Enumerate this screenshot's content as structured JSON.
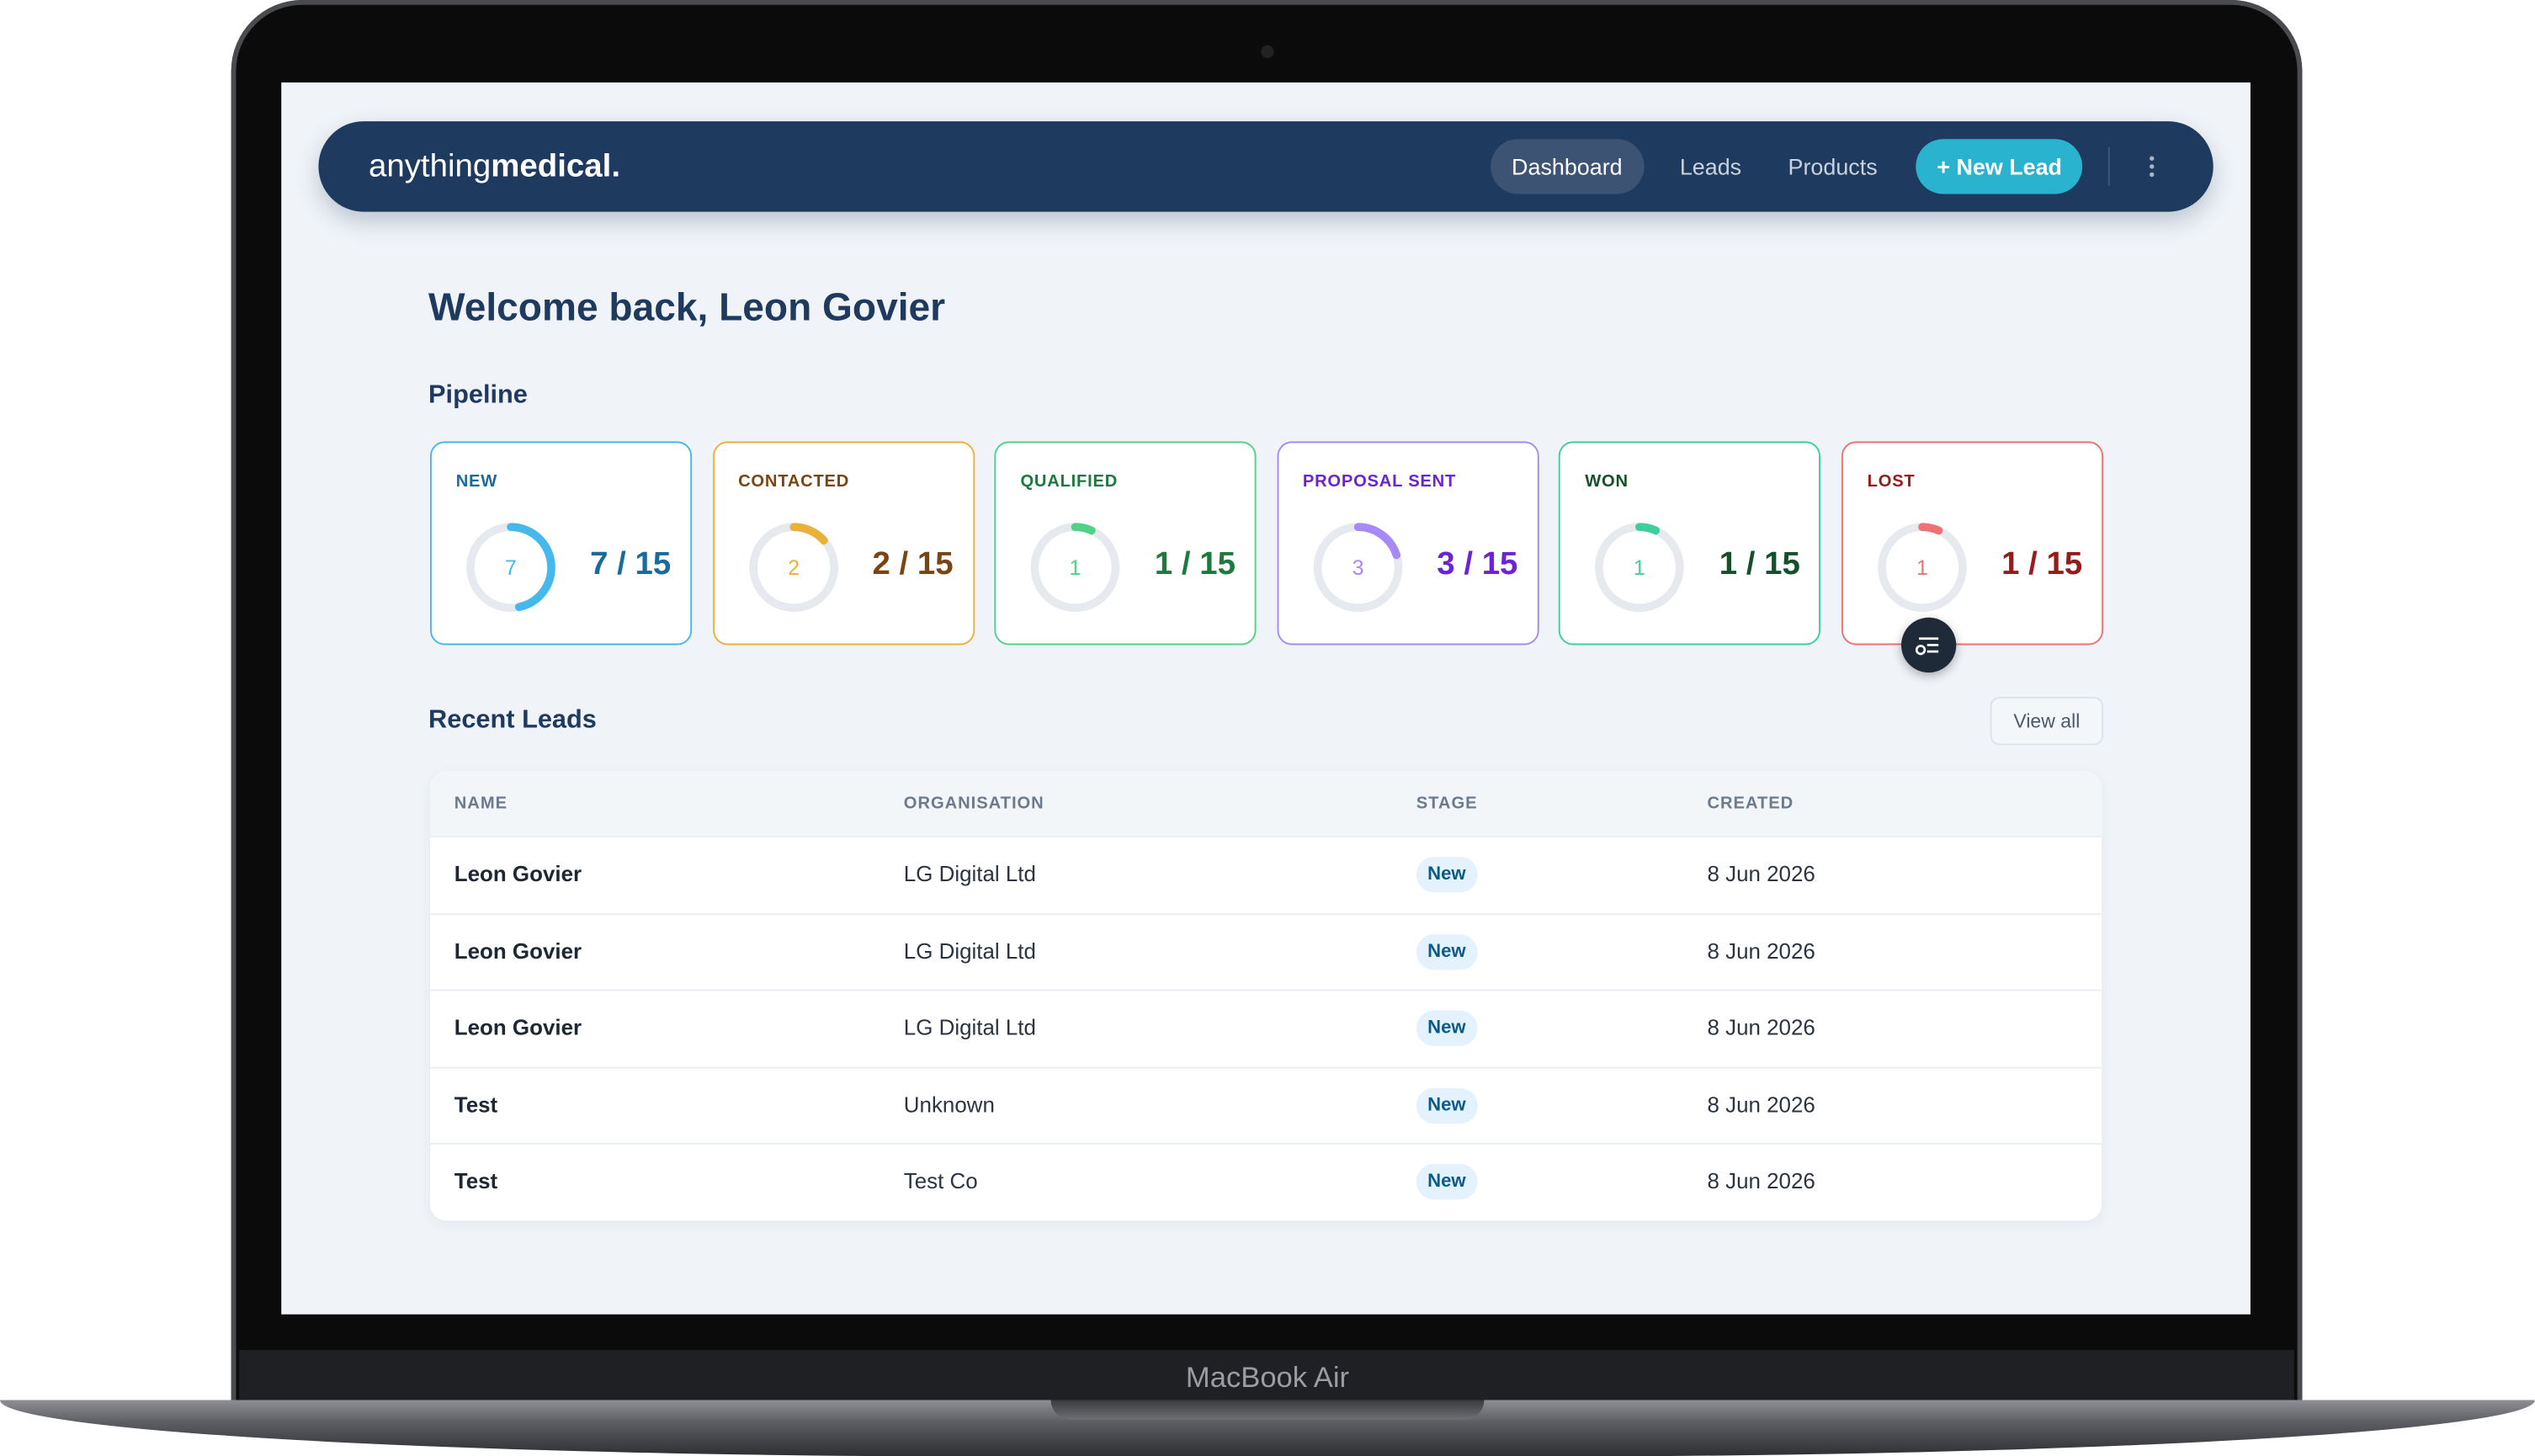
{
  "device_label": "MacBook Air",
  "nav": {
    "brand_light": "anything",
    "brand_bold": "medical.",
    "links": [
      "Dashboard",
      "Leads",
      "Products"
    ],
    "cta": "+ New Lead"
  },
  "welcome": "Welcome back, Leon Govier",
  "pipeline": {
    "title": "Pipeline",
    "stages": [
      {
        "name": "NEW",
        "count": 7,
        "total": 15,
        "label": "7 / 15",
        "color": "#45b9ec",
        "text_color": "#1b6a9c"
      },
      {
        "name": "CONTACTED",
        "count": 2,
        "total": 15,
        "label": "2 / 15",
        "color": "#eab13a",
        "text_color": "#7a4512"
      },
      {
        "name": "QUALIFIED",
        "count": 1,
        "total": 15,
        "label": "1 / 15",
        "color": "#4fd389",
        "text_color": "#1d7a3d"
      },
      {
        "name": "PROPOSAL SENT",
        "count": 3,
        "total": 15,
        "label": "3 / 15",
        "color": "#a88af6",
        "text_color": "#6a24d4"
      },
      {
        "name": "WON",
        "count": 1,
        "total": 15,
        "label": "1 / 15",
        "color": "#3fcf9a",
        "text_color": "#15502c"
      },
      {
        "name": "LOST",
        "count": 1,
        "total": 15,
        "label": "1 / 15",
        "color": "#ee7272",
        "text_color": "#961b1b"
      }
    ]
  },
  "recent_leads": {
    "title": "Recent Leads",
    "view_all": "View all",
    "table": {
      "headers": [
        "NAME",
        "ORGANISATION",
        "STAGE",
        "CREATED"
      ],
      "rows": [
        [
          "Leon Govier",
          "LG Digital Ltd",
          "New",
          "8 Jun 2026"
        ],
        [
          "Leon Govier",
          "LG Digital Ltd",
          "New",
          "8 Jun 2026"
        ],
        [
          "Leon Govier",
          "LG Digital Ltd",
          "New",
          "8 Jun 2026"
        ],
        [
          "Test",
          "Unknown",
          "New",
          "8 Jun 2026"
        ],
        [
          "Test",
          "Test Co",
          "New",
          "8 Jun 2026"
        ]
      ]
    }
  }
}
